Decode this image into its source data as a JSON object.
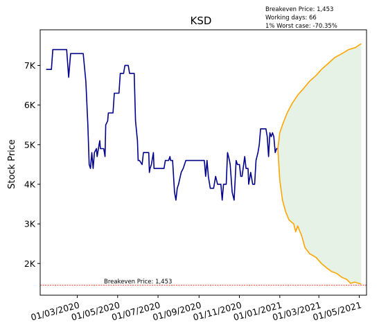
{
  "chart_data": {
    "type": "line",
    "title": "KSD",
    "ylabel": "Stock Price",
    "xlabel": "",
    "ylim": [
      1200,
      7900
    ],
    "xlim": [
      "2020-01-05",
      "2021-05-12"
    ],
    "y_ticks": [
      {
        "value": 2000,
        "label": "2K"
      },
      {
        "value": 3000,
        "label": "3K"
      },
      {
        "value": 4000,
        "label": "4K"
      },
      {
        "value": 5000,
        "label": "5K"
      },
      {
        "value": 6000,
        "label": "6K"
      },
      {
        "value": 7000,
        "label": "7K"
      }
    ],
    "x_ticks": [
      {
        "date": "2020-03-01",
        "label": "01/03/2020"
      },
      {
        "date": "2020-05-01",
        "label": "01/05/2020"
      },
      {
        "date": "2020-07-01",
        "label": "01/07/2020"
      },
      {
        "date": "2020-09-01",
        "label": "01/09/2020"
      },
      {
        "date": "2020-11-01",
        "label": "01/11/2020"
      },
      {
        "date": "2021-01-01",
        "label": "01/01/2021"
      },
      {
        "date": "2021-03-01",
        "label": "01/03/2021"
      },
      {
        "date": "2021-05-01",
        "label": "01/05/2021"
      }
    ],
    "info_lines": [
      "Breakeven Price: 1,453",
      "Working days: 66",
      "1% Worst case: -70.35%"
    ],
    "breakeven": {
      "value": 1453,
      "label": "Breakeven Price: 1,453"
    },
    "series": [
      {
        "color": "#00008b",
        "points": [
          [
            "2020-01-14",
            6900
          ],
          [
            "2020-01-22",
            6900
          ],
          [
            "2020-01-24",
            7400
          ],
          [
            "2020-02-14",
            7400
          ],
          [
            "2020-02-17",
            6700
          ],
          [
            "2020-02-20",
            7300
          ],
          [
            "2020-03-10",
            7300
          ],
          [
            "2020-03-14",
            6600
          ],
          [
            "2020-03-17",
            5500
          ],
          [
            "2020-03-19",
            4500
          ],
          [
            "2020-03-21",
            4400
          ],
          [
            "2020-03-23",
            4800
          ],
          [
            "2020-03-25",
            4400
          ],
          [
            "2020-03-27",
            4800
          ],
          [
            "2020-03-30",
            4900
          ],
          [
            "2020-03-31",
            4700
          ],
          [
            "2020-04-03",
            5000
          ],
          [
            "2020-04-04",
            5100
          ],
          [
            "2020-04-05",
            4900
          ],
          [
            "2020-04-10",
            4900
          ],
          [
            "2020-04-12",
            4700
          ],
          [
            "2020-04-13",
            5500
          ],
          [
            "2020-04-16",
            5600
          ],
          [
            "2020-04-17",
            5800
          ],
          [
            "2020-04-24",
            5800
          ],
          [
            "2020-04-26",
            6300
          ],
          [
            "2020-05-03",
            6300
          ],
          [
            "2020-05-05",
            6800
          ],
          [
            "2020-05-10",
            6800
          ],
          [
            "2020-05-12",
            7000
          ],
          [
            "2020-05-17",
            7000
          ],
          [
            "2020-05-19",
            6800
          ],
          [
            "2020-05-26",
            6800
          ],
          [
            "2020-05-28",
            5600
          ],
          [
            "2020-05-31",
            5100
          ],
          [
            "2020-06-01",
            4600
          ],
          [
            "2020-06-03",
            4600
          ],
          [
            "2020-06-07",
            4500
          ],
          [
            "2020-06-09",
            4800
          ],
          [
            "2020-06-17",
            4800
          ],
          [
            "2020-06-18",
            4300
          ],
          [
            "2020-06-19",
            4400
          ],
          [
            "2020-06-21",
            4500
          ],
          [
            "2020-06-24",
            4800
          ],
          [
            "2020-06-25",
            4400
          ],
          [
            "2020-07-10",
            4400
          ],
          [
            "2020-07-12",
            4600
          ],
          [
            "2020-07-17",
            4600
          ],
          [
            "2020-07-19",
            4700
          ],
          [
            "2020-07-20",
            4600
          ],
          [
            "2020-07-23",
            4600
          ],
          [
            "2020-07-26",
            3800
          ],
          [
            "2020-07-28",
            3600
          ],
          [
            "2020-07-30",
            3900
          ],
          [
            "2020-08-01",
            4000
          ],
          [
            "2020-08-05",
            4300
          ],
          [
            "2020-08-08",
            4400
          ],
          [
            "2020-08-12",
            4600
          ],
          [
            "2020-08-20",
            4600
          ],
          [
            "2020-09-01",
            4600
          ],
          [
            "2020-09-09",
            4600
          ],
          [
            "2020-09-11",
            4200
          ],
          [
            "2020-09-13",
            4600
          ],
          [
            "2020-09-15",
            4200
          ],
          [
            "2020-09-18",
            3900
          ],
          [
            "2020-09-23",
            3900
          ],
          [
            "2020-09-26",
            4200
          ],
          [
            "2020-09-29",
            4000
          ],
          [
            "2020-10-04",
            4000
          ],
          [
            "2020-10-06",
            3600
          ],
          [
            "2020-10-08",
            4000
          ],
          [
            "2020-10-12",
            4000
          ],
          [
            "2020-10-14",
            4800
          ],
          [
            "2020-10-17",
            4600
          ],
          [
            "2020-10-18",
            4500
          ],
          [
            "2020-10-21",
            3800
          ],
          [
            "2020-10-24",
            3600
          ],
          [
            "2020-10-27",
            4600
          ],
          [
            "2020-10-29",
            4500
          ],
          [
            "2020-11-01",
            4500
          ],
          [
            "2020-11-03",
            4200
          ],
          [
            "2020-11-05",
            4200
          ],
          [
            "2020-11-09",
            4700
          ],
          [
            "2020-11-11",
            4400
          ],
          [
            "2020-11-14",
            4400
          ],
          [
            "2020-11-15",
            4000
          ],
          [
            "2020-11-18",
            4300
          ],
          [
            "2020-11-21",
            4000
          ],
          [
            "2020-11-24",
            4000
          ],
          [
            "2020-11-26",
            4600
          ],
          [
            "2020-11-29",
            4800
          ],
          [
            "2020-12-01",
            5000
          ],
          [
            "2020-12-03",
            5400
          ],
          [
            "2020-12-11",
            5400
          ],
          [
            "2020-12-13",
            5200
          ],
          [
            "2020-12-15",
            4700
          ],
          [
            "2020-12-17",
            5300
          ],
          [
            "2020-12-19",
            5200
          ],
          [
            "2020-12-21",
            5300
          ],
          [
            "2020-12-23",
            5200
          ],
          [
            "2020-12-25",
            4800
          ],
          [
            "2020-12-27",
            4900
          ],
          [
            "2020-12-29",
            4900
          ]
        ]
      },
      {
        "color": "#ffa500",
        "points": [
          [
            "2020-12-29",
            4900
          ],
          [
            "2021-01-01",
            5300
          ],
          [
            "2021-01-05",
            5500
          ],
          [
            "2021-01-12",
            5800
          ],
          [
            "2021-01-20",
            6050
          ],
          [
            "2021-01-28",
            6250
          ],
          [
            "2021-02-05",
            6400
          ],
          [
            "2021-02-15",
            6600
          ],
          [
            "2021-02-25",
            6750
          ],
          [
            "2021-03-05",
            6900
          ],
          [
            "2021-03-15",
            7050
          ],
          [
            "2021-03-25",
            7200
          ],
          [
            "2021-04-05",
            7300
          ],
          [
            "2021-04-15",
            7400
          ],
          [
            "2021-04-25",
            7450
          ],
          [
            "2021-05-04",
            7550
          ]
        ]
      },
      {
        "color": "#ffa500",
        "points": [
          [
            "2020-12-29",
            4900
          ],
          [
            "2021-01-01",
            4100
          ],
          [
            "2021-01-05",
            3600
          ],
          [
            "2021-01-10",
            3300
          ],
          [
            "2021-01-15",
            3100
          ],
          [
            "2021-01-22",
            3000
          ],
          [
            "2021-01-25",
            2800
          ],
          [
            "2021-01-28",
            2950
          ],
          [
            "2021-02-03",
            2700
          ],
          [
            "2021-02-08",
            2400
          ],
          [
            "2021-02-15",
            2250
          ],
          [
            "2021-02-25",
            2150
          ],
          [
            "2021-03-05",
            2000
          ],
          [
            "2021-03-12",
            1900
          ],
          [
            "2021-03-20",
            1800
          ],
          [
            "2021-03-28",
            1750
          ],
          [
            "2021-04-05",
            1650
          ],
          [
            "2021-04-12",
            1600
          ],
          [
            "2021-04-18",
            1500
          ],
          [
            "2021-04-24",
            1530
          ],
          [
            "2021-05-04",
            1480
          ]
        ]
      }
    ]
  }
}
